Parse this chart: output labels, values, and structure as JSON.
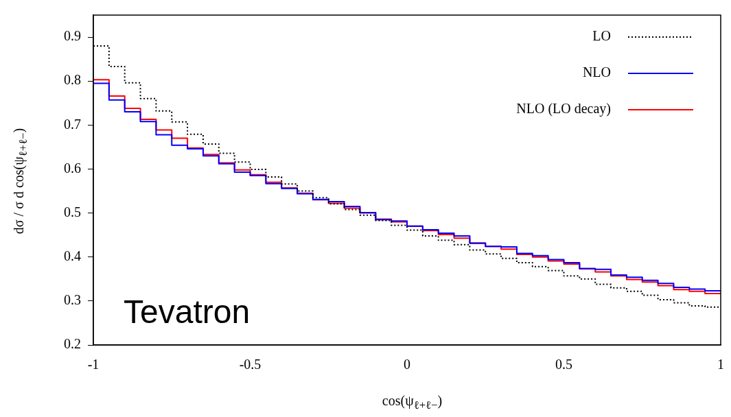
{
  "chart_data": {
    "type": "histogram",
    "xlabel": "cos(ψ$_{ℓ+ℓ−}$)",
    "ylabel": "dσ / σ d cos(ψ$_{ℓ+ℓ−}$)",
    "annotations": [
      "Tevatron"
    ],
    "bins": [
      -1,
      -0.95,
      -0.9,
      -0.85,
      -0.8,
      -0.75,
      -0.7,
      -0.65,
      -0.6,
      -0.55,
      -0.5,
      -0.45,
      -0.4,
      -0.35,
      -0.3,
      -0.25,
      -0.2,
      -0.15,
      -0.1,
      -0.05,
      0,
      0.05,
      0.1,
      0.15,
      0.2,
      0.25,
      0.3,
      0.35,
      0.4,
      0.45,
      0.5,
      0.55,
      0.6,
      0.65,
      0.7,
      0.75,
      0.8,
      0.85,
      0.9,
      0.95,
      1
    ],
    "series": [
      {
        "name": "LO",
        "color": "#000000",
        "line_style": "dotted",
        "values": [
          0.88,
          0.833,
          0.796,
          0.76,
          0.732,
          0.707,
          0.679,
          0.657,
          0.636,
          0.616,
          0.599,
          0.582,
          0.566,
          0.55,
          0.535,
          0.521,
          0.508,
          0.495,
          0.483,
          0.472,
          0.461,
          0.448,
          0.438,
          0.428,
          0.416,
          0.407,
          0.397,
          0.387,
          0.378,
          0.369,
          0.357,
          0.35,
          0.338,
          0.33,
          0.322,
          0.313,
          0.303,
          0.296,
          0.289,
          0.286
        ]
      },
      {
        "name": "NLO",
        "color": "#0000ff",
        "line_style": "solid",
        "values": [
          0.795,
          0.757,
          0.73,
          0.708,
          0.678,
          0.654,
          0.646,
          0.63,
          0.612,
          0.593,
          0.585,
          0.567,
          0.556,
          0.544,
          0.531,
          0.526,
          0.515,
          0.501,
          0.485,
          0.482,
          0.47,
          0.462,
          0.454,
          0.448,
          0.431,
          0.424,
          0.423,
          0.408,
          0.403,
          0.394,
          0.387,
          0.374,
          0.372,
          0.359,
          0.354,
          0.347,
          0.34,
          0.331,
          0.327,
          0.323
        ]
      },
      {
        "name": "NLO (LO decay)",
        "color": "#ff0000",
        "line_style": "solid",
        "values": [
          0.803,
          0.766,
          0.738,
          0.713,
          0.689,
          0.67,
          0.648,
          0.633,
          0.614,
          0.598,
          0.587,
          0.57,
          0.557,
          0.545,
          0.53,
          0.522,
          0.511,
          0.5,
          0.486,
          0.48,
          0.47,
          0.46,
          0.451,
          0.443,
          0.432,
          0.424,
          0.418,
          0.406,
          0.4,
          0.391,
          0.384,
          0.373,
          0.366,
          0.357,
          0.349,
          0.343,
          0.335,
          0.326,
          0.322,
          0.317
        ]
      }
    ],
    "xlim": [
      -1,
      1
    ],
    "xticks": [
      -1,
      -0.5,
      0,
      0.5,
      1
    ],
    "ylim": [
      0.2,
      0.95
    ],
    "yticks": [
      0.2,
      0.3,
      0.4,
      0.5,
      0.6,
      0.7,
      0.8,
      0.9
    ],
    "grid": false,
    "legend": "top right"
  }
}
